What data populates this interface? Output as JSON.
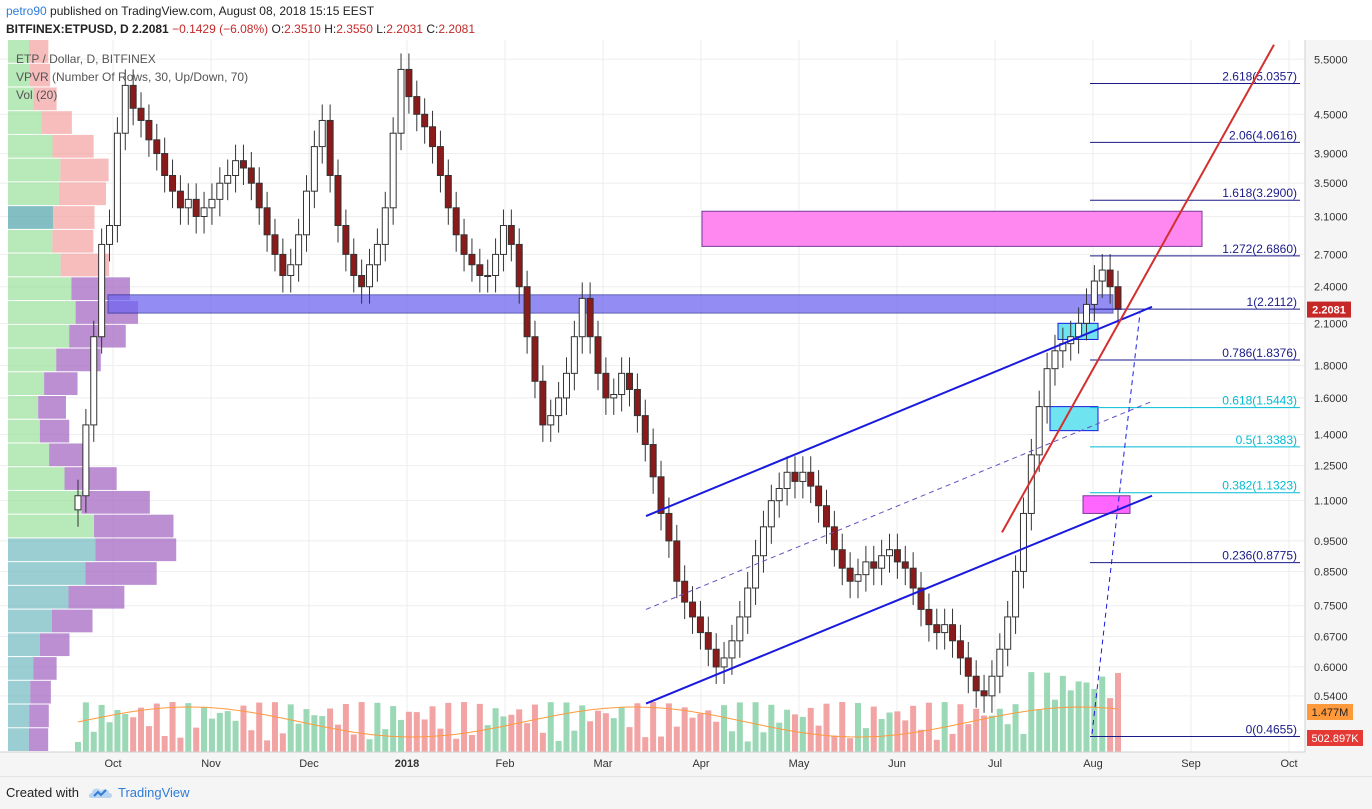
{
  "header": {
    "author": "petro90",
    "published": "published on TradingView.com, August 08, 2018 15:15 EEST",
    "symbol": "BITFINEX:ETPUSD, D",
    "last": "2.2081",
    "change": "−0.1429 (−6.08%)",
    "o_label": "O:",
    "o": "2.3510",
    "h_label": "H:",
    "h": "2.3550",
    "l_label": "L:",
    "l": "2.2031",
    "c_label": "C:",
    "c": "2.2081"
  },
  "legend": {
    "series": "ETP / Dollar, D, BITFINEX",
    "vpvr": "VPVR (Number Of Rows, 30, Up/Down, 70)",
    "vol": "Vol (20)"
  },
  "footer": {
    "created": "Created with",
    "brand": "TradingView"
  },
  "colors": {
    "up": "#26a69a",
    "down": "#ef5350",
    "candle_body": "#444444",
    "channel": "#1a1adf",
    "trend": "#d32f2f",
    "fib": "#1a1a8a",
    "fib_cyan": "#00bcd4",
    "zone_magenta": "#ff66ff",
    "zone_blue": "#6c5fff",
    "zone_cyan": "#4ddde8",
    "vol_ma": "#ff9a3c"
  },
  "chart_data": {
    "type": "candlestick",
    "scale": "log",
    "x_ticks": [
      "Oct",
      "Nov",
      "Dec",
      "2018",
      "Feb",
      "Mar",
      "Apr",
      "May",
      "Jun",
      "Jul",
      "Aug",
      "Sep",
      "Oct"
    ],
    "y_ticks": [
      "5.5000",
      "4.5000",
      "3.9000",
      "3.5000",
      "3.1000",
      "2.7000",
      "2.4000",
      "2.1000",
      "1.8000",
      "1.6000",
      "1.4000",
      "1.2500",
      "1.1000",
      "0.9500",
      "0.8500",
      "0.7500",
      "0.6700",
      "0.6000",
      "0.5400"
    ],
    "ylim": [
      0.44,
      5.9
    ],
    "fib_levels": [
      {
        "label": "0(0.4655)",
        "value": 0.4655
      },
      {
        "label": "0.236(0.8775)",
        "value": 0.8775
      },
      {
        "label": "0.382(1.1323)",
        "value": 1.1323
      },
      {
        "label": "0.5(1.3383)",
        "value": 1.3383
      },
      {
        "label": "0.618(1.5443)",
        "value": 1.5443
      },
      {
        "label": "0.786(1.8376)",
        "value": 1.8376
      },
      {
        "label": "1(2.2112)",
        "value": 2.2112
      },
      {
        "label": "1.272(2.6860)",
        "value": 2.686
      },
      {
        "label": "1.618(3.2900)",
        "value": 3.29
      },
      {
        "label": "2.06(4.0616)",
        "value": 4.0616
      },
      {
        "label": "2.618(5.0357)",
        "value": 5.0357
      }
    ],
    "price_badge": "2.2081",
    "vol_badge_1": "1.477M",
    "vol_badge_2": "502.897K",
    "approx_closes": [
      1.12,
      1.45,
      2.0,
      2.8,
      3.0,
      4.2,
      5.0,
      4.6,
      4.4,
      4.1,
      3.9,
      3.6,
      3.4,
      3.2,
      3.3,
      3.1,
      3.2,
      3.3,
      3.5,
      3.6,
      3.8,
      3.7,
      3.5,
      3.2,
      2.9,
      2.7,
      2.5,
      2.6,
      2.9,
      3.4,
      4.0,
      4.4,
      3.6,
      3.0,
      2.7,
      2.5,
      2.4,
      2.6,
      2.8,
      3.2,
      4.2,
      5.3,
      4.8,
      4.5,
      4.3,
      4.0,
      3.6,
      3.2,
      2.9,
      2.7,
      2.6,
      2.5,
      2.5,
      2.7,
      3.0,
      2.8,
      2.4,
      2.0,
      1.7,
      1.45,
      1.5,
      1.6,
      1.75,
      2.0,
      2.3,
      2.0,
      1.75,
      1.6,
      1.62,
      1.75,
      1.65,
      1.5,
      1.35,
      1.2,
      1.05,
      0.95,
      0.82,
      0.76,
      0.72,
      0.68,
      0.64,
      0.6,
      0.62,
      0.66,
      0.72,
      0.8,
      0.9,
      1.0,
      1.1,
      1.15,
      1.22,
      1.18,
      1.22,
      1.16,
      1.08,
      1.0,
      0.92,
      0.86,
      0.82,
      0.84,
      0.88,
      0.86,
      0.9,
      0.92,
      0.88,
      0.86,
      0.8,
      0.74,
      0.7,
      0.68,
      0.7,
      0.66,
      0.62,
      0.58,
      0.55,
      0.54,
      0.58,
      0.64,
      0.72,
      0.85,
      1.05,
      1.3,
      1.55,
      1.78,
      1.9,
      1.95,
      2.0,
      2.1,
      2.25,
      2.45,
      2.55,
      2.4,
      2.21
    ]
  }
}
